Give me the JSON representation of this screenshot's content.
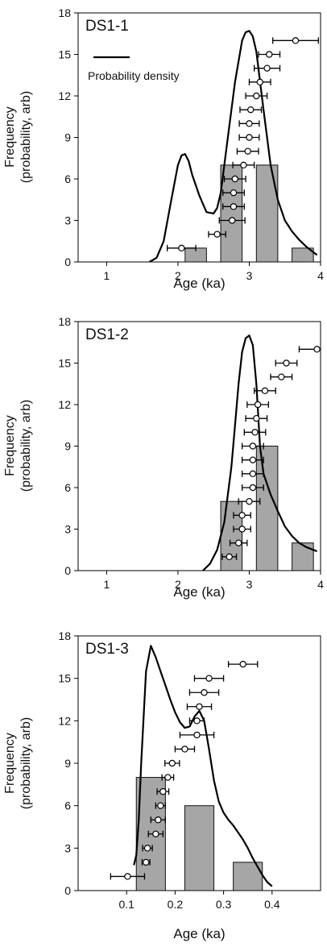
{
  "chart_data": [
    {
      "type": "bar",
      "title": "DS1-1",
      "xlabel": "Age (ka)",
      "ylabel": "Frequency (probability, arb)",
      "ylabel_lines": [
        "Frequency",
        "(probability, arb)"
      ],
      "xlim": [
        0.6,
        4.0
      ],
      "ylim": [
        0,
        18
      ],
      "xticks": [
        1,
        2,
        3,
        4
      ],
      "yticks": [
        0,
        3,
        6,
        9,
        12,
        15,
        18
      ],
      "legend": {
        "label": "Probability density",
        "position": "top-left"
      },
      "bins": [
        {
          "start": 2.1,
          "end": 2.4,
          "value": 1
        },
        {
          "start": 2.6,
          "end": 2.9,
          "value": 7
        },
        {
          "start": 3.1,
          "end": 3.4,
          "value": 7
        },
        {
          "start": 3.6,
          "end": 3.9,
          "value": 1
        }
      ],
      "ages": [
        {
          "y": 1,
          "age": 2.05,
          "err": 0.2
        },
        {
          "y": 2,
          "age": 2.55,
          "err": 0.12
        },
        {
          "y": 3,
          "age": 2.76,
          "err": 0.18
        },
        {
          "y": 4,
          "age": 2.78,
          "err": 0.15
        },
        {
          "y": 5,
          "age": 2.78,
          "err": 0.15
        },
        {
          "y": 6,
          "age": 2.8,
          "err": 0.15
        },
        {
          "y": 7,
          "age": 2.92,
          "err": 0.15
        },
        {
          "y": 8,
          "age": 2.98,
          "err": 0.15
        },
        {
          "y": 9,
          "age": 3.0,
          "err": 0.14
        },
        {
          "y": 10,
          "age": 3.0,
          "err": 0.14
        },
        {
          "y": 11,
          "age": 3.02,
          "err": 0.15
        },
        {
          "y": 12,
          "age": 3.1,
          "err": 0.15
        },
        {
          "y": 13,
          "age": 3.15,
          "err": 0.15
        },
        {
          "y": 14,
          "age": 3.25,
          "err": 0.18
        },
        {
          "y": 15,
          "age": 3.28,
          "err": 0.15
        },
        {
          "y": 16,
          "age": 3.65,
          "err": 0.32
        }
      ],
      "density_curve": {
        "x": [
          1.6,
          1.7,
          1.8,
          1.9,
          2.0,
          2.05,
          2.1,
          2.15,
          2.2,
          2.3,
          2.4,
          2.5,
          2.55,
          2.6,
          2.7,
          2.8,
          2.9,
          2.95,
          3.0,
          3.05,
          3.1,
          3.2,
          3.3,
          3.4,
          3.5,
          3.6,
          3.7,
          3.8,
          3.9,
          3.95
        ],
        "y": [
          0,
          0.3,
          1.5,
          4.3,
          7.0,
          7.7,
          7.8,
          7.3,
          6.3,
          4.8,
          3.6,
          3.5,
          3.9,
          5.0,
          9.0,
          13.0,
          16.0,
          16.6,
          16.7,
          16.3,
          15.2,
          11.0,
          7.0,
          4.5,
          3.0,
          2.2,
          1.6,
          1.1,
          0.7,
          0.5
        ]
      }
    },
    {
      "type": "bar",
      "title": "DS1-2",
      "xlabel": "Age (ka)",
      "ylabel": "Frequency (probability, arb)",
      "ylabel_lines": [
        "Frequency",
        "(probability, arb)"
      ],
      "xlim": [
        0.6,
        4.0
      ],
      "ylim": [
        0,
        18
      ],
      "xticks": [
        1,
        2,
        3,
        4
      ],
      "yticks": [
        0,
        3,
        6,
        9,
        12,
        15,
        18
      ],
      "bins": [
        {
          "start": 2.6,
          "end": 2.9,
          "value": 5
        },
        {
          "start": 3.1,
          "end": 3.4,
          "value": 9
        },
        {
          "start": 3.6,
          "end": 3.9,
          "value": 2
        }
      ],
      "ages": [
        {
          "y": 1,
          "age": 2.72,
          "err": 0.1
        },
        {
          "y": 2,
          "age": 2.85,
          "err": 0.12
        },
        {
          "y": 3,
          "age": 2.9,
          "err": 0.12
        },
        {
          "y": 4,
          "age": 2.9,
          "err": 0.12
        },
        {
          "y": 5,
          "age": 3.0,
          "err": 0.15
        },
        {
          "y": 6,
          "age": 3.05,
          "err": 0.15
        },
        {
          "y": 7,
          "age": 3.05,
          "err": 0.15
        },
        {
          "y": 8,
          "age": 3.05,
          "err": 0.15
        },
        {
          "y": 9,
          "age": 3.05,
          "err": 0.15
        },
        {
          "y": 10,
          "age": 3.08,
          "err": 0.15
        },
        {
          "y": 11,
          "age": 3.1,
          "err": 0.15
        },
        {
          "y": 12,
          "age": 3.12,
          "err": 0.15
        },
        {
          "y": 13,
          "age": 3.22,
          "err": 0.15
        },
        {
          "y": 14,
          "age": 3.45,
          "err": 0.15
        },
        {
          "y": 15,
          "age": 3.52,
          "err": 0.15
        },
        {
          "y": 16,
          "age": 3.95,
          "err": 0.25
        }
      ],
      "density_curve": {
        "x": [
          2.35,
          2.45,
          2.55,
          2.65,
          2.75,
          2.8,
          2.85,
          2.9,
          2.95,
          3.0,
          3.05,
          3.1,
          3.15,
          3.2,
          3.3,
          3.4,
          3.5,
          3.6,
          3.7,
          3.8,
          3.9,
          3.95
        ],
        "y": [
          0,
          0.5,
          1.5,
          3.5,
          7.5,
          10.5,
          13.5,
          15.8,
          16.8,
          17.0,
          16.3,
          13.5,
          9.0,
          7.0,
          5.5,
          4.3,
          3.2,
          2.5,
          2.0,
          1.7,
          1.5,
          1.4
        ]
      }
    },
    {
      "type": "bar",
      "title": "DS1-3",
      "xlabel": "Age (ka)",
      "ylabel": "Frequency (probability, arb)",
      "ylabel_lines": [
        "Frequency",
        "(probability, arb)"
      ],
      "xlim": [
        0.0,
        0.5
      ],
      "ylim": [
        0,
        18
      ],
      "xticks": [
        0.1,
        0.2,
        0.3,
        0.4
      ],
      "yticks": [
        0,
        3,
        6,
        9,
        12,
        15,
        18
      ],
      "bins": [
        {
          "start": 0.12,
          "end": 0.18,
          "value": 8
        },
        {
          "start": 0.22,
          "end": 0.28,
          "value": 6
        },
        {
          "start": 0.32,
          "end": 0.38,
          "value": 2
        }
      ],
      "ages": [
        {
          "y": 1,
          "age": 0.102,
          "err": 0.035
        },
        {
          "y": 2,
          "age": 0.14,
          "err": 0.008
        },
        {
          "y": 3,
          "age": 0.143,
          "err": 0.01
        },
        {
          "y": 4,
          "age": 0.16,
          "err": 0.015
        },
        {
          "y": 5,
          "age": 0.165,
          "err": 0.015
        },
        {
          "y": 6,
          "age": 0.17,
          "err": 0.01
        },
        {
          "y": 7,
          "age": 0.175,
          "err": 0.012
        },
        {
          "y": 8,
          "age": 0.185,
          "err": 0.012
        },
        {
          "y": 9,
          "age": 0.194,
          "err": 0.015
        },
        {
          "y": 10,
          "age": 0.22,
          "err": 0.02
        },
        {
          "y": 11,
          "age": 0.245,
          "err": 0.035
        },
        {
          "y": 12,
          "age": 0.245,
          "err": 0.015
        },
        {
          "y": 13,
          "age": 0.25,
          "err": 0.025
        },
        {
          "y": 14,
          "age": 0.26,
          "err": 0.03
        },
        {
          "y": 15,
          "age": 0.27,
          "err": 0.03
        },
        {
          "y": 16,
          "age": 0.34,
          "err": 0.03
        }
      ],
      "density_curve": {
        "x": [
          0.115,
          0.12,
          0.125,
          0.13,
          0.14,
          0.15,
          0.16,
          0.17,
          0.18,
          0.19,
          0.2,
          0.21,
          0.22,
          0.23,
          0.24,
          0.25,
          0.26,
          0.27,
          0.28,
          0.29,
          0.3,
          0.31,
          0.32,
          0.33,
          0.34,
          0.35,
          0.36,
          0.37,
          0.38,
          0.39,
          0.4
        ],
        "y": [
          1.8,
          2.5,
          5.0,
          9.0,
          15.5,
          17.3,
          16.5,
          15.5,
          14.5,
          13.5,
          12.6,
          11.9,
          11.5,
          11.6,
          12.3,
          12.7,
          12.0,
          10.0,
          7.8,
          6.3,
          5.5,
          5.0,
          4.6,
          4.1,
          3.6,
          3.0,
          2.3,
          1.7,
          1.1,
          0.6,
          0.3
        ]
      }
    }
  ],
  "colors": {
    "bar_fill": "#a6a6a6",
    "bar_stroke": "#111111",
    "curve": "#000000",
    "marker_fill": "#ffffff",
    "axis": "#000000",
    "text": "#111111"
  }
}
